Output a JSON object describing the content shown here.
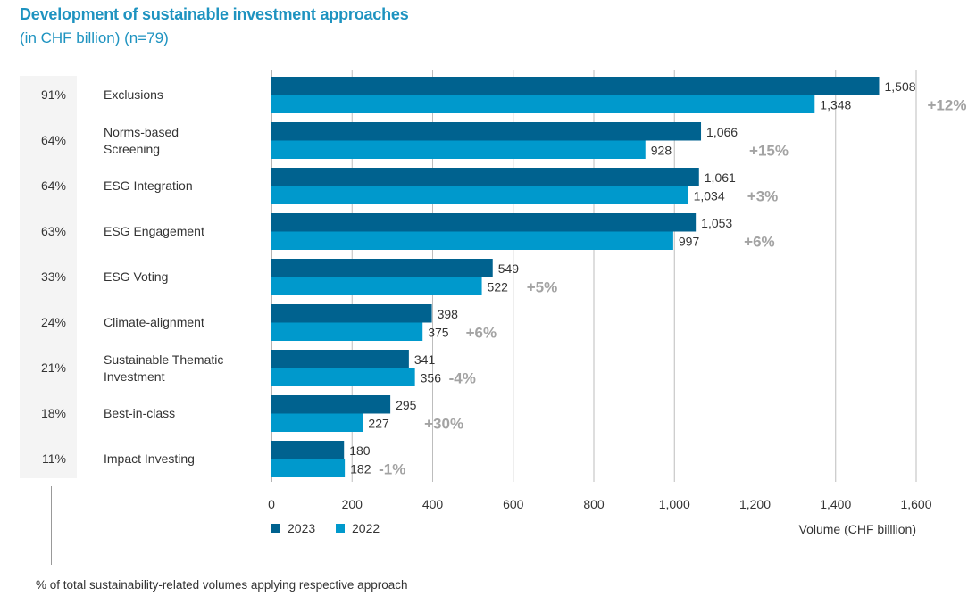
{
  "header": {
    "title": "Development of sustainable investment approaches",
    "subtitle": "(in CHF billion) (n=79)"
  },
  "footnote": "% of total sustainability-related volumes applying respective approach",
  "colors": {
    "series_2023": "#00628f",
    "series_2022": "#0099cc",
    "title": "#1e93c0",
    "change_label": "#a3a3a3",
    "gridline": "#bdbdbd",
    "pct_column_bg": "#f4f4f4"
  },
  "chart_data": {
    "type": "bar",
    "orientation": "horizontal",
    "title": "Development of sustainable investment approaches",
    "subtitle": "(in CHF billion) (n=79)",
    "xlabel": "Volume (CHF billlion)",
    "ylabel": "",
    "xlim": [
      0,
      1600
    ],
    "xticks": [
      0,
      200,
      400,
      600,
      800,
      1000,
      1200,
      1400,
      1600
    ],
    "xtick_labels": [
      "0",
      "200",
      "400",
      "600",
      "800",
      "1,000",
      "1,200",
      "1,400",
      "1,600"
    ],
    "grid": "vertical",
    "legend_position": "bottom-left",
    "categories": [
      "Exclusions",
      "Norms-based Screening",
      "ESG Integration",
      "ESG Engagement",
      "ESG Voting",
      "Climate-alignment",
      "Sustainable Thematic Investment",
      "Best-in-class",
      "Impact Investing"
    ],
    "category_lines": [
      [
        "Exclusions"
      ],
      [
        "Norms-based",
        "Screening"
      ],
      [
        "ESG Integration"
      ],
      [
        "ESG Engagement"
      ],
      [
        "ESG Voting"
      ],
      [
        "Climate-alignment"
      ],
      [
        "Sustainable Thematic",
        "Investment"
      ],
      [
        "Best-in-class"
      ],
      [
        "Impact Investing"
      ]
    ],
    "share_of_total": [
      "91%",
      "64%",
      "64%",
      "63%",
      "33%",
      "24%",
      "21%",
      "18%",
      "11%"
    ],
    "series": [
      {
        "name": "2023",
        "values": [
          1508,
          1066,
          1061,
          1053,
          549,
          398,
          341,
          295,
          180
        ],
        "labels": [
          "1,508",
          "1,066",
          "1,061",
          "1,053",
          "549",
          "398",
          "341",
          "295",
          "180"
        ]
      },
      {
        "name": "2022",
        "values": [
          1348,
          928,
          1034,
          997,
          522,
          375,
          356,
          227,
          182
        ],
        "labels": [
          "1,348",
          "928",
          "1,034",
          "997",
          "522",
          "375",
          "356",
          "227",
          "182"
        ]
      }
    ],
    "change": [
      "+12%",
      "+15%",
      "+3%",
      "+6%",
      "+5%",
      "+6%",
      "-4%",
      "+30%",
      "-1%"
    ],
    "legend": [
      "2023",
      "2022"
    ],
    "share_note": "% of total sustainability-related volumes applying respective approach"
  }
}
